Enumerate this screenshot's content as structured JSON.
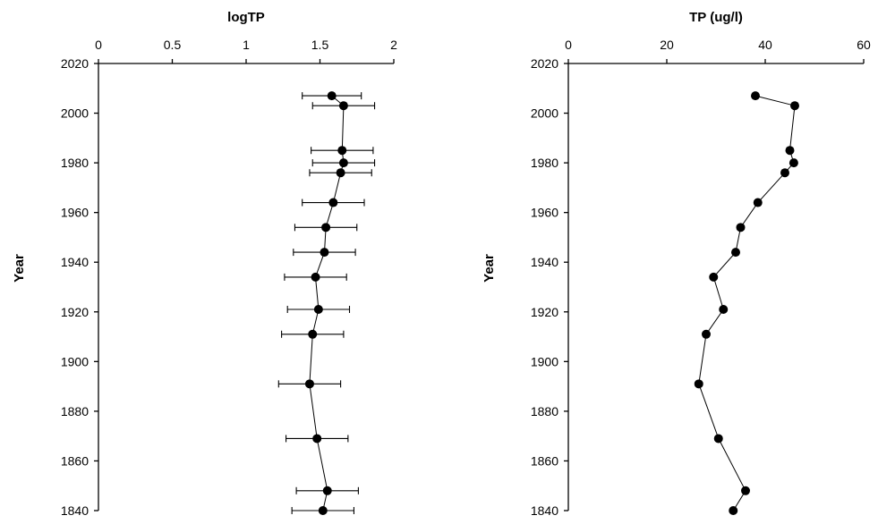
{
  "chart_data": [
    {
      "type": "scatter",
      "title": "logTP",
      "xlabel": "logTP",
      "ylabel": "Year",
      "xlim": [
        0,
        2
      ],
      "ylim": [
        1840,
        2020
      ],
      "x_ticks": [
        "0",
        "0.5",
        "1",
        "1.5",
        "2"
      ],
      "y_ticks": [
        "2020",
        "2000",
        "1980",
        "1960",
        "1940",
        "1920",
        "1900",
        "1880",
        "1860",
        "1840"
      ],
      "x_axis_position": "top",
      "grid": false,
      "error_bars": true,
      "points": [
        {
          "year": 2007,
          "value": 1.58,
          "err": 0.2
        },
        {
          "year": 2003,
          "value": 1.66,
          "err": 0.21
        },
        {
          "year": 1985,
          "value": 1.65,
          "err": 0.21
        },
        {
          "year": 1976,
          "value": 1.64,
          "err": 0.21
        },
        {
          "year": 1964,
          "value": 1.59,
          "err": 0.21
        },
        {
          "year": 1954,
          "value": 1.54,
          "err": 0.21
        },
        {
          "year": 1944,
          "value": 1.53,
          "err": 0.21
        },
        {
          "year": 1921,
          "value": 1.49,
          "err": 0.21
        },
        {
          "year": 1911,
          "value": 1.45,
          "err": 0.21
        },
        {
          "year": 1869,
          "value": 1.48,
          "err": 0.21
        },
        {
          "year": 1848,
          "value": 1.55,
          "err": 0.21
        },
        {
          "year": 1840,
          "value": 1.52,
          "err": 0.21
        },
        {
          "year": 1934,
          "value": 1.47,
          "err": 0.21
        },
        {
          "year": 1891,
          "value": 1.43,
          "err": 0.21
        },
        {
          "year": 1980,
          "value": 1.66,
          "err": 0.21
        }
      ]
    },
    {
      "type": "line",
      "title": "TP (ug/l)",
      "xlabel": "TP (ug/l)",
      "ylabel": "Year",
      "xlim": [
        0,
        60
      ],
      "ylim": [
        1840,
        2020
      ],
      "x_ticks": [
        "0",
        "20",
        "40",
        "60"
      ],
      "y_ticks": [
        "2020",
        "2000",
        "1980",
        "1960",
        "1940",
        "1920",
        "1900",
        "1880",
        "1860",
        "1840"
      ],
      "x_axis_position": "top",
      "grid": false,
      "points": [
        {
          "year": 2007,
          "value": 38.0
        },
        {
          "year": 2003,
          "value": 46.0
        },
        {
          "year": 1985,
          "value": 45.0
        },
        {
          "year": 1976,
          "value": 44.0
        },
        {
          "year": 1980,
          "value": 45.8
        },
        {
          "year": 1964,
          "value": 38.5
        },
        {
          "year": 1954,
          "value": 35.0
        },
        {
          "year": 1944,
          "value": 34.0
        },
        {
          "year": 1934,
          "value": 29.5
        },
        {
          "year": 1921,
          "value": 31.5
        },
        {
          "year": 1911,
          "value": 28.0
        },
        {
          "year": 1891,
          "value": 26.5
        },
        {
          "year": 1869,
          "value": 30.5
        },
        {
          "year": 1848,
          "value": 36.0
        },
        {
          "year": 1840,
          "value": 33.5
        }
      ]
    }
  ]
}
